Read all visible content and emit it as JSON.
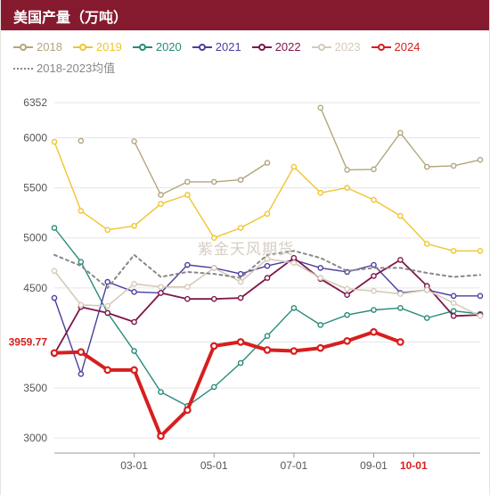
{
  "title": "美国产量（万吨）",
  "watermark": "紫金天风期货",
  "legend": [
    {
      "key": "s2018",
      "label": "2018",
      "color": "#b2a67c",
      "marker": "circle"
    },
    {
      "key": "s2019",
      "label": "2019",
      "color": "#f0c52e",
      "marker": "circle"
    },
    {
      "key": "s2020",
      "label": "2020",
      "color": "#2a8a7a",
      "marker": "circle"
    },
    {
      "key": "s2021",
      "label": "2021",
      "color": "#4a3e9e",
      "marker": "circle"
    },
    {
      "key": "s2022",
      "label": "2022",
      "color": "#7e174a",
      "marker": "circle"
    },
    {
      "key": "s2023",
      "label": "2023",
      "color": "#d6cab8",
      "marker": "circle"
    },
    {
      "key": "s2024",
      "label": "2024",
      "color": "#d81e1e",
      "marker": "circle"
    },
    {
      "key": "mean",
      "label": "2018-2023均值",
      "color": "#888888",
      "marker": "dash"
    }
  ],
  "xticks": [
    "03-01",
    "05-01",
    "07-01",
    "09-01",
    "10-01"
  ],
  "xtick_idx": [
    3,
    6,
    9,
    12,
    13.5
  ],
  "xtick_highlight": {
    "10-01": true
  },
  "yticks": [
    3000,
    3500,
    3959.77,
    4500,
    5000,
    5500,
    6000,
    6352
  ],
  "ytick_highlight": {
    "3959.77": true
  },
  "ylim": [
    2850,
    6450
  ],
  "chart": {
    "type": "line",
    "x_count": 17,
    "background_color": "#ffffff",
    "grid_color": "#e5e5e5",
    "axis_color": "#999999",
    "label_fontsize": 12,
    "title_fontsize": 16,
    "series": {
      "s2018": {
        "color": "#b2a67c",
        "width": 1.4,
        "marker": "o",
        "values": [
          null,
          5970,
          null,
          5965,
          5430,
          5560,
          5560,
          5580,
          5750,
          null,
          6300,
          5680,
          5685,
          6050,
          5710,
          5720,
          5780
        ]
      },
      "s2019": {
        "color": "#f0c52e",
        "width": 1.4,
        "marker": "o",
        "values": [
          5960,
          5270,
          5080,
          5120,
          5340,
          5430,
          5000,
          5100,
          5240,
          5710,
          5450,
          5500,
          5380,
          5220,
          4940,
          4870,
          4870
        ]
      },
      "s2020": {
        "color": "#2a8a7a",
        "width": 1.4,
        "marker": "o",
        "values": [
          5100,
          4760,
          4250,
          3870,
          3460,
          3320,
          3510,
          3750,
          4020,
          4300,
          4130,
          4230,
          4280,
          4300,
          4200,
          4270,
          4240
        ]
      },
      "s2021": {
        "color": "#4a3e9e",
        "width": 1.4,
        "marker": "o",
        "values": [
          4400,
          3640,
          4560,
          4460,
          4450,
          4730,
          4700,
          4640,
          4720,
          4780,
          4700,
          4660,
          4730,
          4450,
          4480,
          4420,
          4420
        ]
      },
      "s2022": {
        "color": "#7e174a",
        "width": 1.8,
        "marker": "o",
        "values": [
          3840,
          4310,
          4250,
          4160,
          4450,
          4390,
          4390,
          4400,
          4600,
          4800,
          4590,
          4430,
          4620,
          4780,
          4520,
          4220,
          4230
        ]
      },
      "s2023": {
        "color": "#d6cab8",
        "width": 1.6,
        "marker": "o",
        "values": [
          4670,
          4330,
          4320,
          4540,
          4510,
          4510,
          4700,
          4560,
          4790,
          4750,
          4600,
          4490,
          4470,
          4440,
          4480,
          4350,
          4220
        ]
      },
      "s2024": {
        "color": "#d81e1e",
        "width": 4,
        "marker": "o",
        "values": [
          3850,
          3860,
          3680,
          3680,
          3020,
          3280,
          3920,
          3960,
          3880,
          3870,
          3900,
          3970,
          4060,
          3959.77,
          null,
          null,
          null
        ]
      },
      "mean": {
        "color": "#888888",
        "width": 2,
        "marker": "dash",
        "values": [
          4830,
          4720,
          4500,
          4830,
          4610,
          4660,
          4640,
          4600,
          4830,
          4870,
          4800,
          4670,
          4700,
          4700,
          4650,
          4610,
          4630
        ]
      }
    }
  },
  "last_point": {
    "series": "s2024",
    "value": 3959.77,
    "color": "#d81e1e"
  }
}
